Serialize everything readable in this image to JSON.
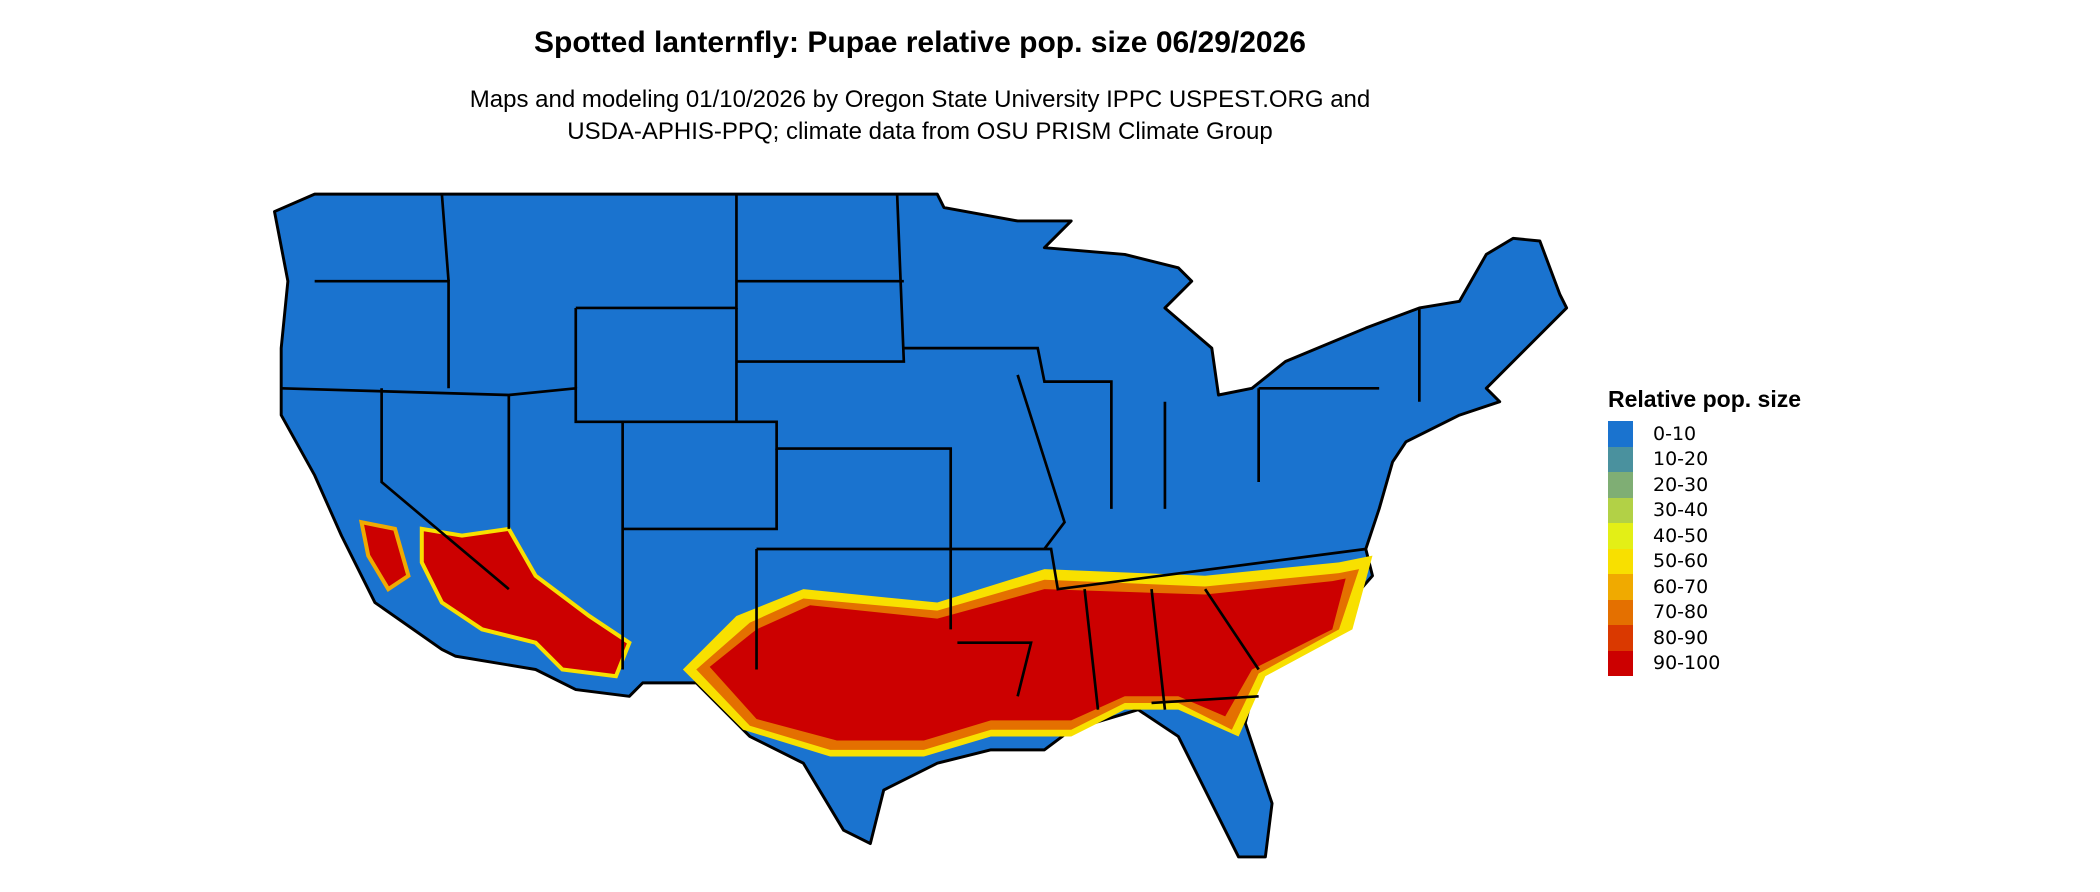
{
  "header": {
    "title": "Spotted lanternfly: Pupae relative pop. size 06/29/2026",
    "subtitle_line1": "Maps and modeling 01/10/2026 by Oregon State University IPPC USPEST.ORG and",
    "subtitle_line2": "USDA-APHIS-PPQ; climate data from OSU PRISM Climate Group"
  },
  "legend": {
    "title": "Relative pop. size",
    "items": [
      {
        "label": "0-10",
        "color": "#1a73cf"
      },
      {
        "label": "10-20",
        "color": "#4a919e"
      },
      {
        "label": "20-30",
        "color": "#7fae74"
      },
      {
        "label": "30-40",
        "color": "#b2d146"
      },
      {
        "label": "40-50",
        "color": "#e3ef16"
      },
      {
        "label": "50-60",
        "color": "#f8e000"
      },
      {
        "label": "60-70",
        "color": "#f0aa00"
      },
      {
        "label": "70-80",
        "color": "#e47000"
      },
      {
        "label": "80-90",
        "color": "#da3900"
      },
      {
        "label": "90-100",
        "color": "#cc0000"
      }
    ]
  }
}
